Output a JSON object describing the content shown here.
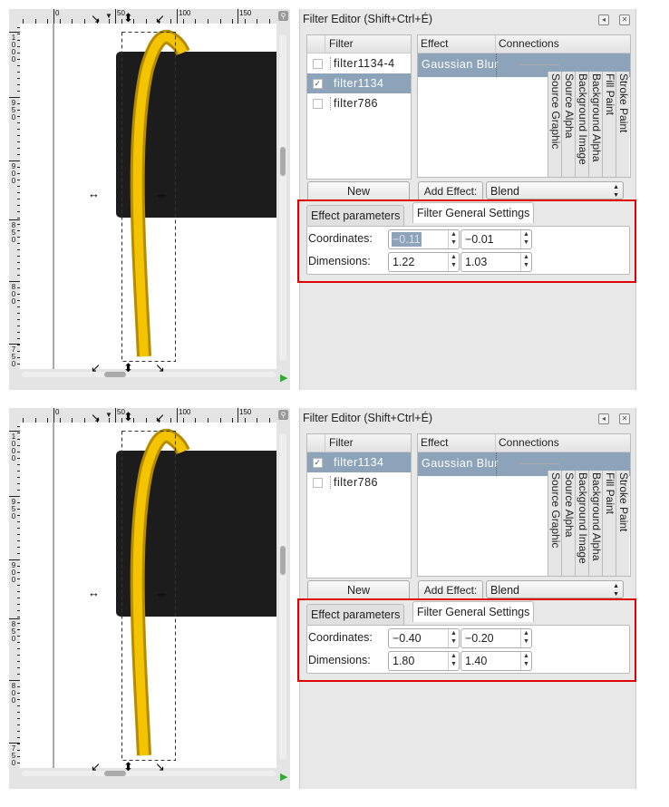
{
  "panels": [
    {
      "canvas": {
        "hruler_labels": [
          "0",
          "50",
          "100",
          "150"
        ],
        "vruler_labels": [
          "1000",
          "950",
          "900",
          "850",
          "800",
          "750"
        ]
      },
      "dialog": {
        "title": "Filter Editor (Shift+Ctrl+É)",
        "filter_header": "Filter",
        "filters": [
          {
            "name": "filter1134-4",
            "checked": false,
            "selected": false
          },
          {
            "name": "filter1134",
            "checked": true,
            "selected": true
          },
          {
            "name": "filter786",
            "checked": false,
            "selected": false
          }
        ],
        "effect_header": "Effect",
        "connections_header": "Connections",
        "effects": [
          "Gaussian Blur"
        ],
        "inputs": [
          "Source Graphic",
          "Source Alpha",
          "Background Image",
          "Background Alpha",
          "Fill Paint",
          "Stroke Paint"
        ],
        "new_label": "New",
        "add_effect_label": "Add Effect:",
        "effect_select": "Blend",
        "tabs": [
          "Effect parameters",
          "Filter General Settings"
        ],
        "active_tab": 1,
        "coordinates_label": "Coordinates:",
        "dimensions_label": "Dimensions:",
        "coord_x": "−0.11",
        "coord_y": "−0.01",
        "dim_w": "1.22",
        "dim_h": "1.03",
        "coord_x_selected": true
      }
    },
    {
      "canvas": {
        "hruler_labels": [
          "0",
          "50",
          "100",
          "150"
        ],
        "vruler_labels": [
          "1000",
          "950",
          "900",
          "850",
          "800",
          "750"
        ]
      },
      "dialog": {
        "title": "Filter Editor (Shift+Ctrl+É)",
        "filter_header": "Filter",
        "filters": [
          {
            "name": "filter1134",
            "checked": true,
            "selected": true
          },
          {
            "name": "filter786",
            "checked": false,
            "selected": false
          }
        ],
        "effect_header": "Effect",
        "connections_header": "Connections",
        "effects": [
          "Gaussian Blur"
        ],
        "inputs": [
          "Source Graphic",
          "Source Alpha",
          "Background Image",
          "Background Alpha",
          "Fill Paint",
          "Stroke Paint"
        ],
        "new_label": "New",
        "add_effect_label": "Add Effect:",
        "effect_select": "Blend",
        "tabs": [
          "Effect parameters",
          "Filter General Settings"
        ],
        "active_tab": 1,
        "coordinates_label": "Coordinates:",
        "dimensions_label": "Dimensions:",
        "coord_x": "−0.40",
        "coord_y": "−0.20",
        "dim_w": "1.80",
        "dim_h": "1.40",
        "coord_x_selected": false
      }
    }
  ],
  "colors": {
    "selection": "#8ca3ba",
    "highlight_frame": "#e00000",
    "tube": "#f5c400",
    "rect": "#1c1c1c"
  }
}
